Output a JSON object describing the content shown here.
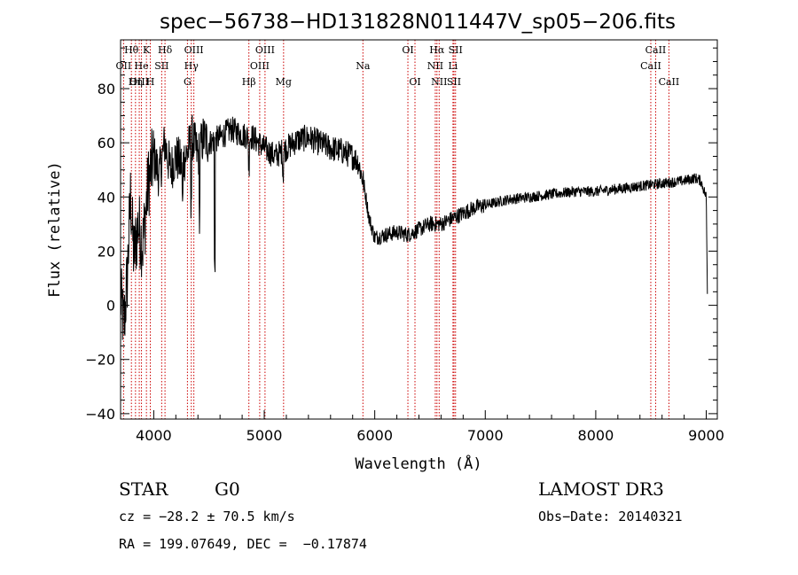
{
  "chart_data": {
    "type": "line",
    "title": "spec−56738−HD131828N011447V_sp05−206.fits",
    "xlabel": "Wavelength (Å)",
    "ylabel": "Flux (relative)",
    "xlim": [
      3700,
      9100
    ],
    "ylim": [
      -42,
      98
    ],
    "x_ticks": [
      4000,
      5000,
      6000,
      7000,
      8000,
      9000
    ],
    "y_ticks": [
      -40,
      -20,
      0,
      20,
      40,
      60,
      80
    ],
    "colors": {
      "spectrum": "#000000",
      "line_marker": "#cc0000",
      "axes": "#000000"
    },
    "spectrum_anchors": [
      [
        3700,
        3
      ],
      [
        3730,
        -8
      ],
      [
        3760,
        10
      ],
      [
        3790,
        40
      ],
      [
        3820,
        18
      ],
      [
        3860,
        30
      ],
      [
        3900,
        22
      ],
      [
        3950,
        45
      ],
      [
        4000,
        55
      ],
      [
        4050,
        48
      ],
      [
        4100,
        60
      ],
      [
        4150,
        50
      ],
      [
        4200,
        55
      ],
      [
        4250,
        52
      ],
      [
        4300,
        56
      ],
      [
        4350,
        62
      ],
      [
        4400,
        55
      ],
      [
        4450,
        62
      ],
      [
        4500,
        60
      ],
      [
        4600,
        62
      ],
      [
        4700,
        65
      ],
      [
        4800,
        63
      ],
      [
        4900,
        62
      ],
      [
        5000,
        58
      ],
      [
        5100,
        55
      ],
      [
        5200,
        58
      ],
      [
        5300,
        61
      ],
      [
        5400,
        62
      ],
      [
        5500,
        60
      ],
      [
        5600,
        58
      ],
      [
        5700,
        57
      ],
      [
        5800,
        55
      ],
      [
        5850,
        53
      ],
      [
        5900,
        45
      ],
      [
        5950,
        32
      ],
      [
        6000,
        25
      ],
      [
        6100,
        26
      ],
      [
        6200,
        27
      ],
      [
        6300,
        26
      ],
      [
        6400,
        28
      ],
      [
        6500,
        30
      ],
      [
        6600,
        30
      ],
      [
        6700,
        32
      ],
      [
        6800,
        34
      ],
      [
        6900,
        36
      ],
      [
        7000,
        37
      ],
      [
        7200,
        39
      ],
      [
        7400,
        40
      ],
      [
        7600,
        41
      ],
      [
        7800,
        42
      ],
      [
        8000,
        42
      ],
      [
        8200,
        43
      ],
      [
        8400,
        44
      ],
      [
        8600,
        45
      ],
      [
        8800,
        46
      ],
      [
        8900,
        47
      ],
      [
        8950,
        46
      ],
      [
        9000,
        40
      ],
      [
        9010,
        5
      ]
    ],
    "spectrum_features": [
      {
        "x": 4260,
        "depth": 15
      },
      {
        "x": 4340,
        "depth": 20
      },
      {
        "x": 4415,
        "depth": 22
      },
      {
        "x": 4553,
        "depth": 45
      },
      {
        "x": 4861,
        "depth": 10
      },
      {
        "x": 5170,
        "depth": 8
      }
    ],
    "lines": [
      {
        "label": "Hθ",
        "wave": 3798,
        "row": 0
      },
      {
        "label": "K",
        "wave": 3934,
        "row": 0
      },
      {
        "label": "Hδ",
        "wave": 4102,
        "row": 0
      },
      {
        "label": "OIII",
        "wave": 4363,
        "row": 0
      },
      {
        "label": "OIII",
        "wave": 5007,
        "row": 0
      },
      {
        "label": "OI",
        "wave": 6300,
        "row": 0
      },
      {
        "label": "Hα",
        "wave": 6563,
        "row": 0
      },
      {
        "label": "SII",
        "wave": 6731,
        "row": 0
      },
      {
        "label": "CaII",
        "wave": 8542,
        "row": 0
      },
      {
        "label": "OII",
        "wave": 3727,
        "row": 1
      },
      {
        "label": "He",
        "wave": 3889,
        "row": 1
      },
      {
        "label": "SII",
        "wave": 4072,
        "row": 1
      },
      {
        "label": "Hγ",
        "wave": 4340,
        "row": 1
      },
      {
        "label": "OIII",
        "wave": 4959,
        "row": 1
      },
      {
        "label": "Na",
        "wave": 5893,
        "row": 1
      },
      {
        "label": "NII",
        "wave": 6548,
        "row": 1
      },
      {
        "label": "Li",
        "wave": 6708,
        "row": 1
      },
      {
        "label": "CaII",
        "wave": 8498,
        "row": 1
      },
      {
        "label": "OIII",
        "wave": 3869,
        "row": 2
      },
      {
        "label": "Hη",
        "wave": 3835,
        "row": 2
      },
      {
        "label": "H",
        "wave": 3969,
        "row": 2
      },
      {
        "label": "G",
        "wave": 4305,
        "row": 2
      },
      {
        "label": "Hβ",
        "wave": 4861,
        "row": 2
      },
      {
        "label": "Mg",
        "wave": 5175,
        "row": 2
      },
      {
        "label": "OI",
        "wave": 6364,
        "row": 2
      },
      {
        "label": "NII",
        "wave": 6583,
        "row": 2
      },
      {
        "label": "SII",
        "wave": 6717,
        "row": 2
      },
      {
        "label": "CaII",
        "wave": 8662,
        "row": 2
      }
    ]
  },
  "info": {
    "object_class": "STAR",
    "subclass": "G0",
    "survey": "LAMOST DR3",
    "redshift": "cz = −28.2 ± 70.5 km/s",
    "obs_date": "Obs−Date: 20140321",
    "coords": "RA = 199.07649, DEC =  −0.17874"
  }
}
